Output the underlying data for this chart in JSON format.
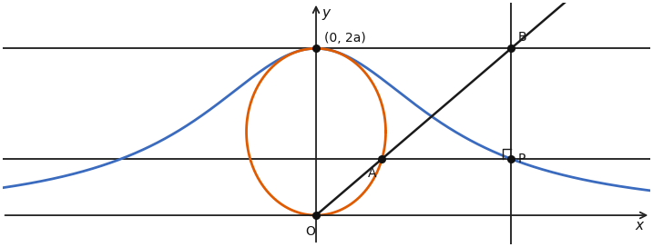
{
  "a": 1.0,
  "x_B": 2.8,
  "figsize": [
    7.17,
    2.72
  ],
  "dpi": 100,
  "xlim": [
    -4.5,
    4.8
  ],
  "ylim": [
    -0.35,
    2.55
  ],
  "circle_color": "#e05a00",
  "curve_color": "#3a6bbf",
  "axes_color": "#222222",
  "line_color": "#1a1a1a",
  "point_color": "#111111",
  "label_O": "O",
  "label_top": "(0, 2a)",
  "label_B": "B",
  "label_A": "A",
  "label_P": "P",
  "label_x": "x",
  "label_y": "y"
}
